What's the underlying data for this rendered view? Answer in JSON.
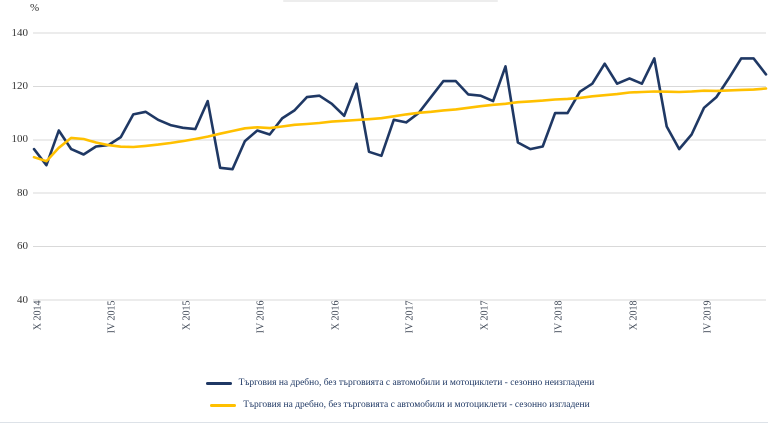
{
  "chart": {
    "unit": "%"
  },
  "chart_data": {
    "type": "line",
    "title": "",
    "ylabel": "%",
    "ylim": [
      40,
      140
    ],
    "yticks": [
      40,
      60,
      80,
      100,
      120,
      140
    ],
    "grid": true,
    "legend_position": "bottom",
    "x_tick_labels": [
      "X 2014",
      "IV 2015",
      "X 2015",
      "IV 2016",
      "X 2016",
      "IV 2017",
      "X 2017",
      "IV 2018",
      "X 2018",
      "IV 2019"
    ],
    "x_tick_every": 6,
    "x_unit": "month",
    "x_range_note": "monthly points from X 2014 to IX 2019",
    "series": [
      {
        "name": "Търговия на дребно, без търговията с автомобили и мотоциклети - сезонно неизгладени",
        "color": "#1f3864",
        "values": [
          96.5,
          90.5,
          103.5,
          96.5,
          94.5,
          97.5,
          98,
          101,
          109.5,
          110.5,
          107.5,
          105.5,
          104.5,
          104,
          114.5,
          89.5,
          89,
          99.5,
          103.5,
          102,
          108,
          111,
          116,
          116.5,
          113.5,
          109,
          121,
          95.5,
          94,
          107.5,
          106.5,
          110,
          116,
          122,
          122,
          117,
          116.5,
          114.5,
          127.5,
          99,
          96.5,
          97.5,
          110,
          110,
          118,
          121,
          128.5,
          121,
          123,
          121,
          130.5,
          105,
          96.5,
          102,
          112,
          116,
          123,
          130.5,
          130.5,
          124.5
        ]
      },
      {
        "name": "Търговия на дребно, без търговията с автомобили и мотоциклети - сезонно изгладени",
        "color": "#ffc000",
        "values": [
          93.5,
          92,
          97,
          100.7,
          100.3,
          99,
          98,
          97.4,
          97.3,
          97.7,
          98.2,
          98.8,
          99.5,
          100.3,
          101.2,
          102.3,
          103.3,
          104.3,
          104.7,
          104.4,
          105,
          105.6,
          105.9,
          106.3,
          106.8,
          107.1,
          107.4,
          107.7,
          108.1,
          108.8,
          109.5,
          110.1,
          110.5,
          111,
          111.4,
          112,
          112.6,
          113.1,
          113.5,
          114.1,
          114.4,
          114.7,
          115.1,
          115.3,
          115.7,
          116.3,
          116.7,
          117.1,
          117.7,
          117.9,
          118.1,
          118,
          117.9,
          118.1,
          118.4,
          118.3,
          118.5,
          118.7,
          118.8,
          119.2
        ]
      }
    ]
  },
  "colors": {
    "grid": "#d9d9d9",
    "axis_text": "#333333",
    "legend_text": "#1f3864",
    "divider": "#dde2e8"
  }
}
